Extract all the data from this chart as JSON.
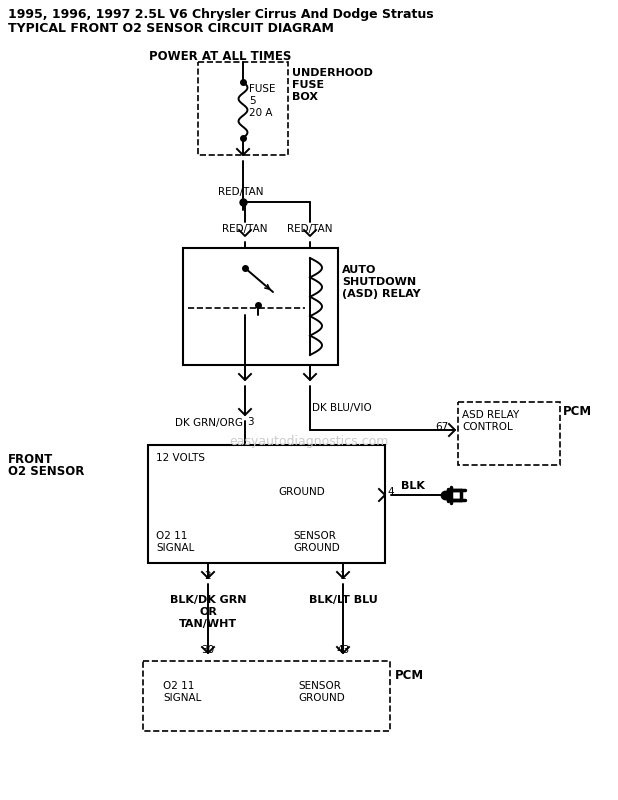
{
  "title_line1": "1995, 1996, 1997 2.5L V6 Chrysler Cirrus And Dodge Stratus",
  "title_line2": "TYPICAL FRONT O2 SENSOR CIRCUIT DIAGRAM",
  "bg_color": "#ffffff",
  "lc": "#000000",
  "watermark": "easyautodiagnostics.com",
  "fig_w": 6.18,
  "fig_h": 8.0,
  "dpi": 100
}
